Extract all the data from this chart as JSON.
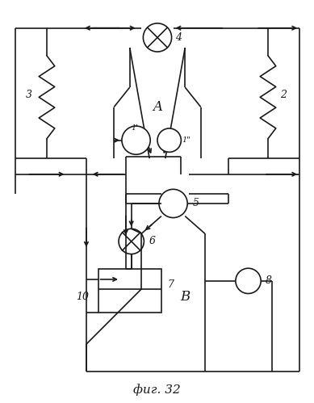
{
  "title": "фиг. 32",
  "bg_color": "#ffffff",
  "line_color": "#1a1a1a",
  "fig_width": 3.89,
  "fig_height": 4.99
}
